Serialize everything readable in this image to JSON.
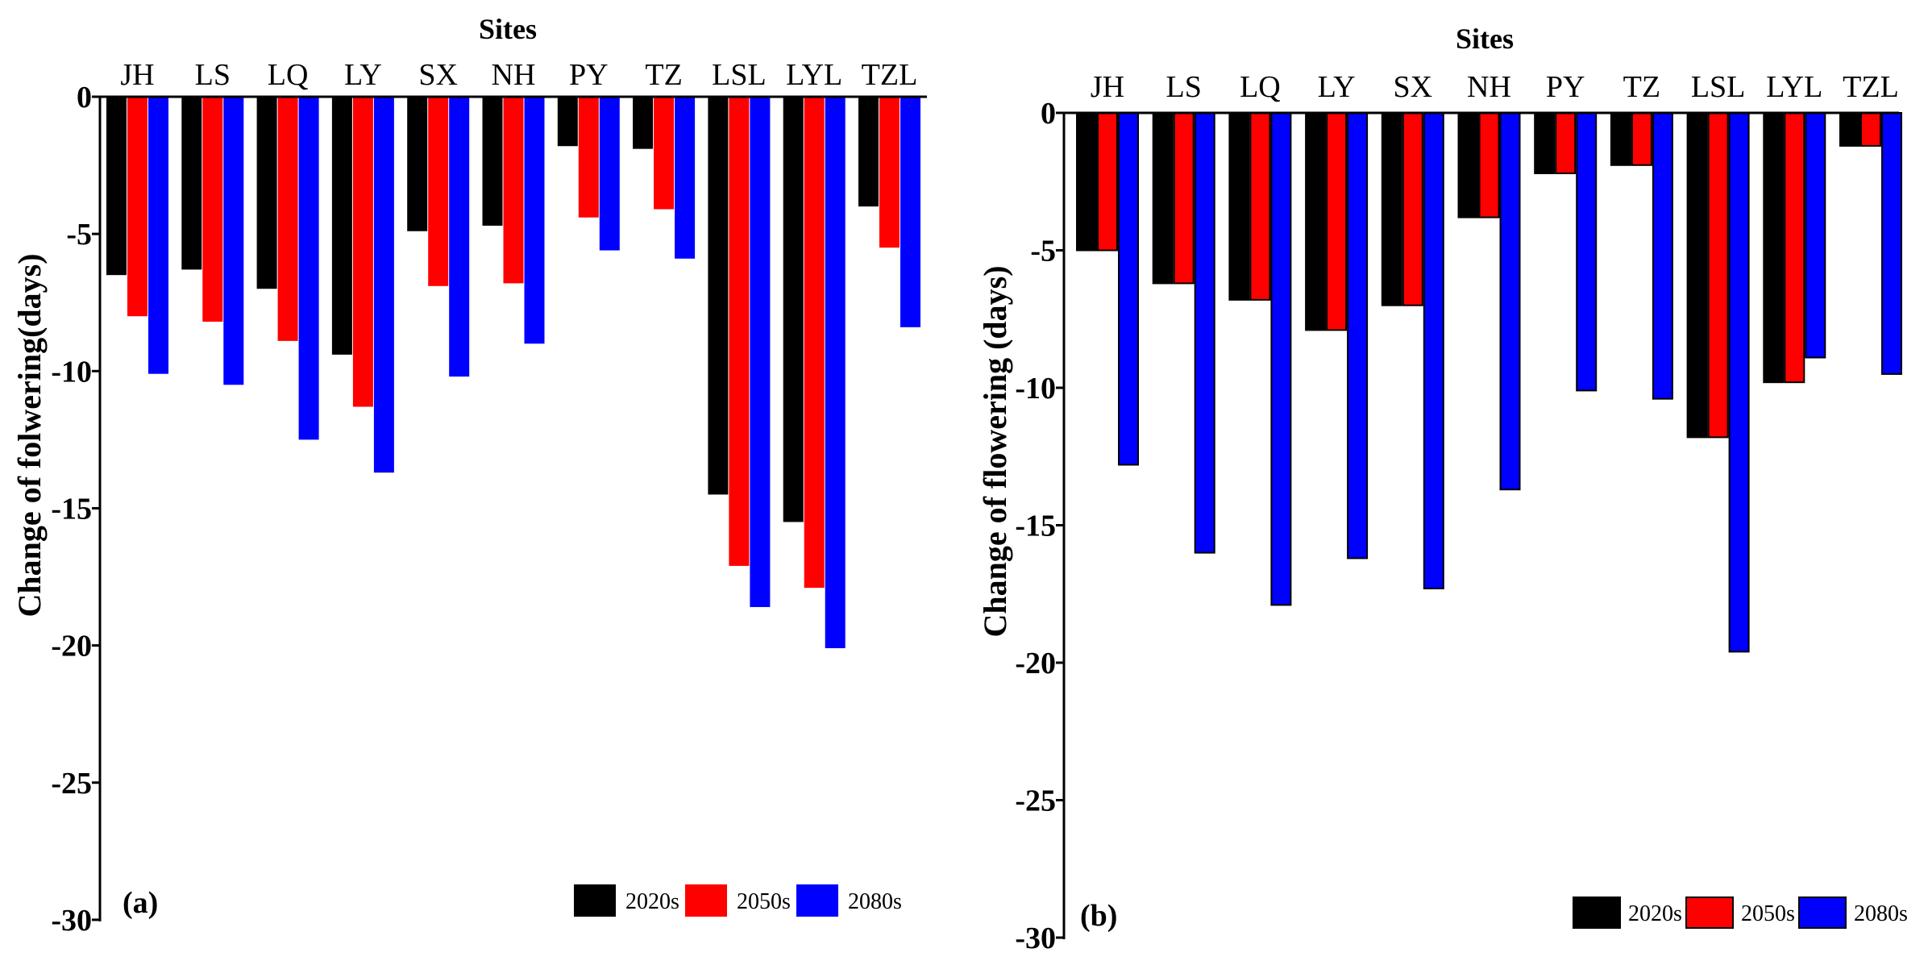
{
  "chart_data": [
    {
      "type": "bar",
      "panel_label": "(a)",
      "xlabel": "Sites",
      "ylabel": "Change of folwering(days)",
      "ylim": [
        -30,
        0
      ],
      "yticks": [
        0,
        -5,
        -10,
        -15,
        -20,
        -25,
        -30
      ],
      "categories": [
        "JH",
        "LS",
        "LQ",
        "LY",
        "SX",
        "NH",
        "PY",
        "TZ",
        "LSL",
        "LYL",
        "TZL"
      ],
      "series": [
        {
          "name": "2020s",
          "color": "#000000",
          "values": [
            -6.5,
            -6.3,
            -7.0,
            -9.4,
            -4.9,
            -4.7,
            -1.8,
            -1.9,
            -14.5,
            -15.5,
            -4.0
          ]
        },
        {
          "name": "2050s",
          "color": "#ff0000",
          "values": [
            -8.0,
            -8.2,
            -8.9,
            -11.3,
            -6.9,
            -6.8,
            -4.4,
            -4.1,
            -17.1,
            -17.9,
            -5.5
          ]
        },
        {
          "name": "2080s",
          "color": "#0000ff",
          "values": [
            -10.1,
            -10.5,
            -12.5,
            -13.7,
            -10.2,
            -9.0,
            -5.6,
            -5.9,
            -18.6,
            -20.1,
            -8.4
          ]
        }
      ],
      "legend": [
        "2020s",
        "2050s",
        "2080s"
      ],
      "legend_position": "bottom-right",
      "grid": false
    },
    {
      "type": "bar",
      "panel_label": "(b)",
      "xlabel": "Sites",
      "ylabel": "Change of flowering (days)",
      "ylim": [
        -30,
        0
      ],
      "yticks": [
        0,
        -5,
        -10,
        -15,
        -20,
        -25,
        -30
      ],
      "categories": [
        "JH",
        "LS",
        "LQ",
        "LY",
        "SX",
        "NH",
        "PY",
        "TZ",
        "LSL",
        "LYL",
        "TZL"
      ],
      "series": [
        {
          "name": "2020s",
          "color": "#000000",
          "values": [
            -5.0,
            -6.2,
            -6.8,
            -7.9,
            -7.0,
            -3.8,
            -2.2,
            -1.9,
            -11.8,
            -9.8,
            -1.2
          ]
        },
        {
          "name": "2050s",
          "color": "#ff0000",
          "values": [
            -5.0,
            -6.2,
            -6.8,
            -7.9,
            -7.0,
            -3.8,
            -2.2,
            -1.9,
            -11.8,
            -9.8,
            -1.2
          ]
        },
        {
          "name": "2080s",
          "color": "#0000ff",
          "values": [
            -12.8,
            -16.0,
            -17.9,
            -16.2,
            -17.3,
            -13.7,
            -10.1,
            -10.4,
            -19.6,
            -8.9,
            -9.5
          ]
        }
      ],
      "legend": [
        "2020s",
        "2050s",
        "2080s"
      ],
      "legend_position": "bottom-right",
      "grid": false
    }
  ]
}
